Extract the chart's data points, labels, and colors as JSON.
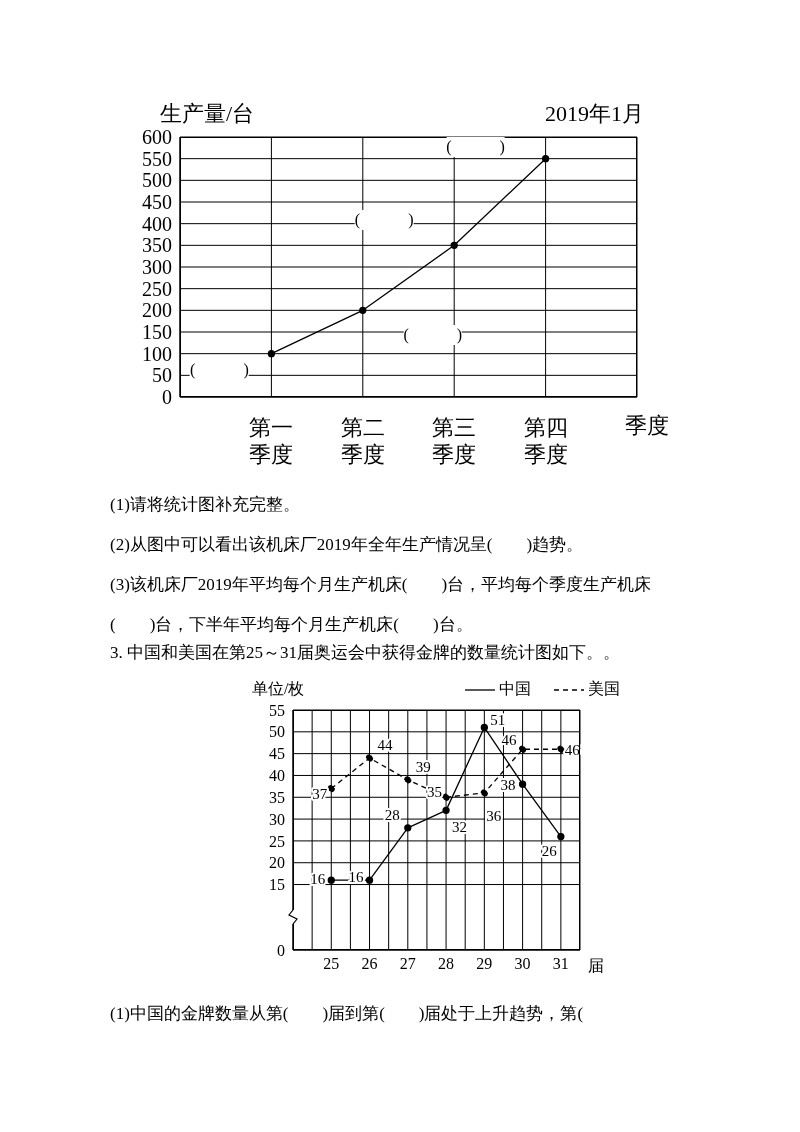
{
  "chart_data": [
    {
      "type": "line",
      "ylabel": "生产量/台",
      "subtitle": "2019年1月",
      "xlabel": "季度",
      "categories": [
        "第一季度",
        "第二季度",
        "第三季度",
        "第四季度"
      ],
      "series": [
        {
          "color": "#000000",
          "values": [
            100,
            200,
            350,
            550
          ]
        }
      ],
      "ylim": [
        0,
        600
      ],
      "yticks": [
        0,
        50,
        100,
        150,
        200,
        250,
        300,
        350,
        400,
        450,
        500,
        550,
        600
      ],
      "grid": true,
      "marker": "circle",
      "line_style": "solid",
      "annotations": [
        {
          "text": "(　　　)",
          "x": "第一季度",
          "y": 100
        },
        {
          "text": "(　　　)",
          "x": "第二季度",
          "y": 200
        },
        {
          "text": "(　　　)",
          "x": "第三季度",
          "y": 350
        },
        {
          "text": "(　　　)",
          "x": "第四季度",
          "y": 550
        },
        "(1)请将统计图补充完整。",
        "(2)从图中可以看出该机床厂2019年全年生产情况呈(　　)趋势。",
        "(3)该机床厂2019年平均每个月生产机床(　　)台，平均每个季度生产机床(　　)台，下半年平均每个月生产机床(　　)台。"
      ]
    },
    {
      "type": "line",
      "title": "3. 中国和美国在第25～31届奥运会中获得金牌的数量统计图如下。。",
      "ylabel": "单位/枚",
      "xlabel": "届",
      "categories": [
        "25",
        "26",
        "27",
        "28",
        "29",
        "30",
        "31"
      ],
      "series": [
        {
          "name": "中国",
          "color": "#000000",
          "line_style": "solid",
          "values": [
            16,
            16,
            28,
            32,
            51,
            38,
            26
          ]
        },
        {
          "name": "美国",
          "color": "#000000",
          "line_style": "dashed",
          "values": [
            37,
            44,
            39,
            35,
            36,
            46,
            46
          ]
        }
      ],
      "ylim": [
        0,
        55
      ],
      "yticks": [
        0,
        15,
        20,
        25,
        30,
        35,
        40,
        45,
        50,
        55
      ],
      "grid": true,
      "marker": "circle",
      "data_labels": true,
      "legend": "top right",
      "annotations": [
        "(1)中国的金牌数量从第(　　)届到第(　　)届处于上升趋势，第("
      ]
    }
  ]
}
